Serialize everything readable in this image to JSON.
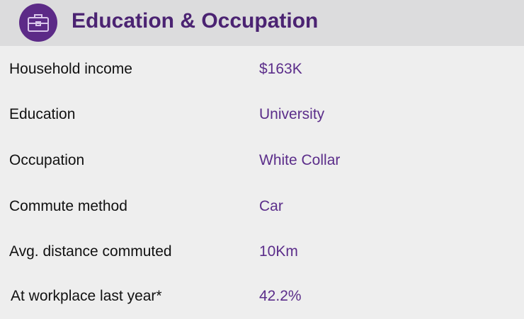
{
  "header": {
    "title": "Education & Occupation",
    "icon": "briefcase-icon",
    "accent": "#5c2a87"
  },
  "rows": [
    {
      "label": "Household income",
      "value": "$163K"
    },
    {
      "label": "Education",
      "value": "University"
    },
    {
      "label": "Occupation",
      "value": "White Collar"
    },
    {
      "label": "Commute method",
      "value": "Car"
    },
    {
      "label": "Avg. distance commuted",
      "value": "10Km"
    },
    {
      "label": "At workplace last year*",
      "value": "42.2%"
    }
  ]
}
